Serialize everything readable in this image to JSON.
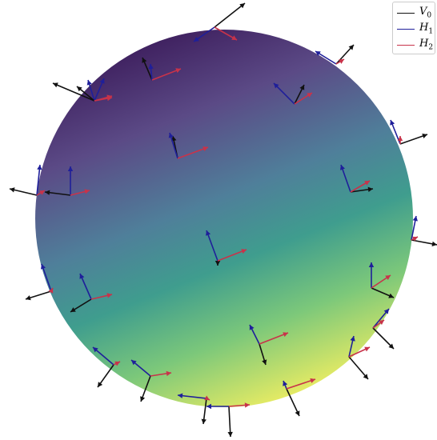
{
  "figure": {
    "sphere_colormap": [
      "#3e1f5e",
      "#5b4a86",
      "#4f7f9a",
      "#3f9d8e",
      "#7cc87a",
      "#e9ec63"
    ],
    "vector_fields": [
      {
        "key": "V0",
        "symbol": "V",
        "subscript": "0",
        "color": "#111111"
      },
      {
        "key": "H1",
        "symbol": "H",
        "subscript": "1",
        "color": "#1f1f9a"
      },
      {
        "key": "H2",
        "symbol": "H",
        "subscript": "2",
        "color": "#c8334a"
      }
    ],
    "legend_position": "top-right",
    "frame_count": 30
  }
}
